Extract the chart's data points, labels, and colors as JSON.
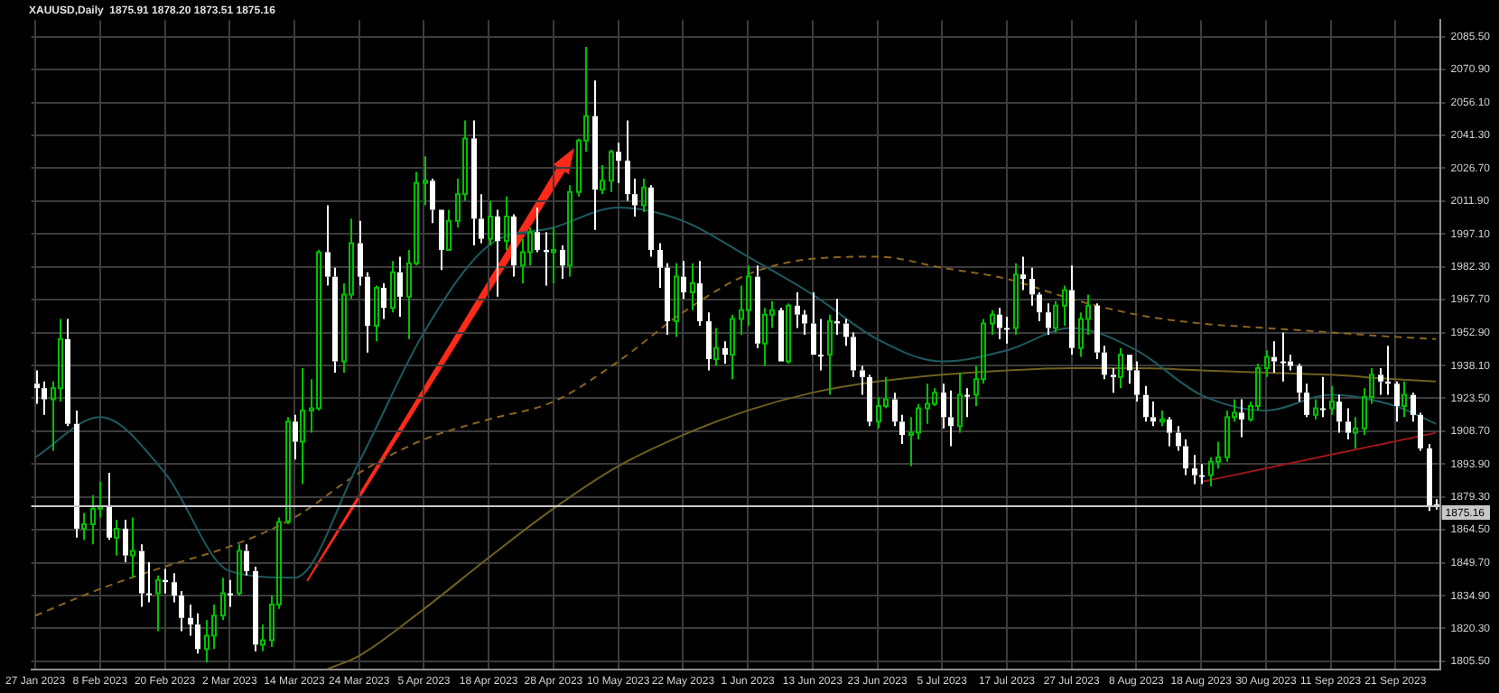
{
  "chart_data": {
    "type": "candlestick",
    "title": "XAUUSD,Daily  1875.91 1878.20 1873.51 1875.16",
    "categories": [
      "27 Jan 2023",
      null,
      null,
      null,
      null,
      null,
      null,
      null,
      "8 Feb 2023",
      null,
      null,
      null,
      null,
      null,
      null,
      null,
      "20 Feb 2023",
      null,
      null,
      null,
      null,
      null,
      null,
      null,
      "2 Mar 2023",
      null,
      null,
      null,
      null,
      null,
      null,
      null,
      "14 Mar 2023",
      null,
      null,
      null,
      null,
      null,
      null,
      null,
      "24 Mar 2023",
      null,
      null,
      null,
      null,
      null,
      null,
      null,
      "5 Apr 2023",
      null,
      null,
      null,
      null,
      null,
      null,
      null,
      "18 Apr 2023",
      null,
      null,
      null,
      null,
      null,
      null,
      null,
      "28 Apr 2023",
      null,
      null,
      null,
      null,
      null,
      null,
      null,
      "10 May 2023",
      null,
      null,
      null,
      null,
      null,
      null,
      null,
      "22 May 2023",
      null,
      null,
      null,
      null,
      null,
      null,
      null,
      "1 Jun 2023",
      null,
      null,
      null,
      null,
      null,
      null,
      null,
      "13 Jun 2023",
      null,
      null,
      null,
      null,
      null,
      null,
      null,
      "23 Jun 2023",
      null,
      null,
      null,
      null,
      null,
      null,
      null,
      "5 Jul 2023",
      null,
      null,
      null,
      null,
      null,
      null,
      null,
      "17 Jul 2023",
      null,
      null,
      null,
      null,
      null,
      null,
      null,
      "27 Jul 2023",
      null,
      null,
      null,
      null,
      null,
      null,
      null,
      "8 Aug 2023",
      null,
      null,
      null,
      null,
      null,
      null,
      null,
      "18 Aug 2023",
      null,
      null,
      null,
      null,
      null,
      null,
      null,
      "30 Aug 2023",
      null,
      null,
      null,
      null,
      null,
      null,
      null,
      "11 Sep 2023",
      null,
      null,
      null,
      null,
      null,
      null,
      null,
      "21 Sep 2023",
      null,
      null,
      null,
      null,
      null
    ],
    "ohlc": [
      [
        1930,
        1936,
        1921,
        1928
      ],
      [
        1928,
        1931,
        1916,
        1923
      ],
      [
        1923,
        1931,
        1900,
        1928
      ],
      [
        1928,
        1959,
        1922,
        1950
      ],
      [
        1950,
        1959,
        1911,
        1912
      ],
      [
        1912,
        1918,
        1861,
        1865
      ],
      [
        1865,
        1872,
        1860,
        1867
      ],
      [
        1867,
        1880,
        1858,
        1874
      ],
      [
        1874,
        1886,
        1870,
        1875
      ],
      [
        1875,
        1890,
        1860,
        1861
      ],
      [
        1861,
        1869,
        1853,
        1865
      ],
      [
        1865,
        1869,
        1850,
        1853
      ],
      [
        1853,
        1870,
        1843,
        1855
      ],
      [
        1855,
        1858,
        1830,
        1836
      ],
      [
        1836,
        1850,
        1832,
        1836
      ],
      [
        1836,
        1844,
        1819,
        1842
      ],
      [
        1842,
        1847,
        1836,
        1841
      ],
      [
        1841,
        1845,
        1832,
        1835
      ],
      [
        1835,
        1837,
        1819,
        1825
      ],
      [
        1825,
        1831,
        1817,
        1822
      ],
      [
        1822,
        1827,
        1809,
        1811
      ],
      [
        1811,
        1824,
        1805,
        1817
      ],
      [
        1817,
        1831,
        1811,
        1826
      ],
      [
        1826,
        1843,
        1824,
        1836
      ],
      [
        1836,
        1842,
        1830,
        1836
      ],
      [
        1836,
        1858,
        1835,
        1855
      ],
      [
        1855,
        1858,
        1844,
        1846
      ],
      [
        1846,
        1848,
        1810,
        1813
      ],
      [
        1813,
        1822,
        1810,
        1815
      ],
      [
        1815,
        1835,
        1812,
        1831
      ],
      [
        1831,
        1870,
        1829,
        1868
      ],
      [
        1868,
        1915,
        1867,
        1913
      ],
      [
        1913,
        1916,
        1896,
        1904
      ],
      [
        1904,
        1937,
        1885,
        1918
      ],
      [
        1918,
        1932,
        1908,
        1919
      ],
      [
        1919,
        1990,
        1918,
        1989
      ],
      [
        1989,
        2010,
        1974,
        1978
      ],
      [
        1978,
        1982,
        1935,
        1940
      ],
      [
        1940,
        1975,
        1935,
        1970
      ],
      [
        1970,
        2004,
        1968,
        1993
      ],
      [
        1993,
        2003,
        1974,
        1978
      ],
      [
        1978,
        1980,
        1944,
        1956
      ],
      [
        1956,
        1974,
        1949,
        1973
      ],
      [
        1973,
        1975,
        1959,
        1964
      ],
      [
        1964,
        1985,
        1962,
        1980
      ],
      [
        1980,
        1987,
        1960,
        1969
      ],
      [
        1969,
        1990,
        1950,
        1984
      ],
      [
        1984,
        2025,
        1983,
        2020
      ],
      [
        2020,
        2032,
        2010,
        2021
      ],
      [
        2021,
        2022,
        2002,
        2008
      ],
      [
        2008,
        2008,
        1981,
        1990
      ],
      [
        1990,
        2008,
        1990,
        2003
      ],
      [
        2003,
        2022,
        2000,
        2015
      ],
      [
        2015,
        2048,
        2012,
        2040
      ],
      [
        2040,
        2048,
        1992,
        2004
      ],
      [
        2004,
        2015,
        1993,
        1995
      ],
      [
        1995,
        2012,
        1992,
        2005
      ],
      [
        2005,
        2008,
        1969,
        1994
      ],
      [
        1994,
        2014,
        1990,
        2005
      ],
      [
        2005,
        2006,
        1978,
        1983
      ],
      [
        1983,
        1995,
        1975,
        1989
      ],
      [
        1989,
        2000,
        1983,
        1998
      ],
      [
        1998,
        2009,
        1989,
        1990
      ],
      [
        1990,
        1998,
        1974,
        1989
      ],
      [
        1989,
        2000,
        1975,
        1990
      ],
      [
        1990,
        1992,
        1977,
        1983
      ],
      [
        1983,
        2019,
        1978,
        2016
      ],
      [
        2016,
        2040,
        2014,
        2039
      ],
      [
        2039,
        2081,
        2034,
        2050
      ],
      [
        2050,
        2066,
        1999,
        2017
      ],
      [
        2017,
        2028,
        2015,
        2021
      ],
      [
        2021,
        2035,
        2016,
        2034
      ],
      [
        2034,
        2038,
        2020,
        2030
      ],
      [
        2030,
        2048,
        2012,
        2015
      ],
      [
        2015,
        2022,
        2005,
        2010
      ],
      [
        2010,
        2022,
        2007,
        2018
      ],
      [
        2018,
        2019,
        1987,
        1990
      ],
      [
        1990,
        1993,
        1973,
        1982
      ],
      [
        1982,
        1984,
        1952,
        1958
      ],
      [
        1958,
        1984,
        1951,
        1978
      ],
      [
        1978,
        1985,
        1968,
        1971
      ],
      [
        1971,
        1984,
        1963,
        1975
      ],
      [
        1975,
        1985,
        1956,
        1958
      ],
      [
        1958,
        1962,
        1936,
        1941
      ],
      [
        1941,
        1955,
        1938,
        1946
      ],
      [
        1946,
        1949,
        1939,
        1943
      ],
      [
        1943,
        1961,
        1932,
        1959
      ],
      [
        1959,
        1974,
        1952,
        1963
      ],
      [
        1963,
        1983,
        1956,
        1978
      ],
      [
        1978,
        1983,
        1946,
        1948
      ],
      [
        1948,
        1964,
        1938,
        1961
      ],
      [
        1961,
        1967,
        1955,
        1963
      ],
      [
        1963,
        1964,
        1940,
        1940
      ],
      [
        1940,
        1966,
        1939,
        1965
      ],
      [
        1965,
        1971,
        1955,
        1961
      ],
      [
        1961,
        1963,
        1952,
        1957
      ],
      [
        1957,
        1971,
        1943,
        1943
      ],
      [
        1943,
        1959,
        1936,
        1943
      ],
      [
        1943,
        1961,
        1925,
        1958
      ],
      [
        1958,
        1968,
        1952,
        1957
      ],
      [
        1957,
        1959,
        1947,
        1951
      ],
      [
        1951,
        1953,
        1933,
        1936
      ],
      [
        1936,
        1938,
        1925,
        1933
      ],
      [
        1933,
        1934,
        1911,
        1913
      ],
      [
        1913,
        1924,
        1910,
        1920
      ],
      [
        1920,
        1933,
        1919,
        1923
      ],
      [
        1923,
        1926,
        1911,
        1913
      ],
      [
        1913,
        1916,
        1903,
        1907
      ],
      [
        1907,
        1915,
        1893,
        1908
      ],
      [
        1908,
        1921,
        1905,
        1919
      ],
      [
        1919,
        1930,
        1912,
        1921
      ],
      [
        1921,
        1928,
        1920,
        1926
      ],
      [
        1926,
        1930,
        1910,
        1915
      ],
      [
        1915,
        1927,
        1902,
        1911
      ],
      [
        1911,
        1935,
        1908,
        1925
      ],
      [
        1925,
        1928,
        1915,
        1925
      ],
      [
        1925,
        1938,
        1920,
        1932
      ],
      [
        1932,
        1959,
        1930,
        1957
      ],
      [
        1957,
        1963,
        1952,
        1961
      ],
      [
        1961,
        1964,
        1950,
        1955
      ],
      [
        1955,
        1960,
        1948,
        1955
      ],
      [
        1955,
        1984,
        1952,
        1979
      ],
      [
        1979,
        1987,
        1972,
        1977
      ],
      [
        1977,
        1982,
        1965,
        1970
      ],
      [
        1970,
        1971,
        1958,
        1962
      ],
      [
        1962,
        1966,
        1952,
        1955
      ],
      [
        1955,
        1967,
        1953,
        1965
      ],
      [
        1965,
        1974,
        1956,
        1972
      ],
      [
        1972,
        1983,
        1943,
        1946
      ],
      [
        1946,
        1962,
        1942,
        1959
      ],
      [
        1959,
        1970,
        1952,
        1965
      ],
      [
        1965,
        1966,
        1941,
        1944
      ],
      [
        1944,
        1947,
        1932,
        1934
      ],
      [
        1934,
        1937,
        1926,
        1933
      ],
      [
        1933,
        1946,
        1928,
        1943
      ],
      [
        1943,
        1943,
        1930,
        1936
      ],
      [
        1936,
        1940,
        1922,
        1925
      ],
      [
        1925,
        1929,
        1913,
        1915
      ],
      [
        1915,
        1922,
        1911,
        1913
      ],
      [
        1913,
        1918,
        1911,
        1914
      ],
      [
        1914,
        1915,
        1902,
        1908
      ],
      [
        1908,
        1911,
        1900,
        1902
      ],
      [
        1902,
        1905,
        1889,
        1892
      ],
      [
        1892,
        1898,
        1885,
        1889
      ],
      [
        1889,
        1894,
        1885,
        1889
      ],
      [
        1889,
        1897,
        1884,
        1895
      ],
      [
        1895,
        1904,
        1892,
        1897
      ],
      [
        1897,
        1918,
        1895,
        1915
      ],
      [
        1915,
        1923,
        1913,
        1917
      ],
      [
        1917,
        1923,
        1906,
        1914
      ],
      [
        1914,
        1922,
        1913,
        1920
      ],
      [
        1920,
        1939,
        1918,
        1937
      ],
      [
        1937,
        1945,
        1933,
        1942
      ],
      [
        1942,
        1949,
        1935,
        1940
      ],
      [
        1940,
        1953,
        1931,
        1940
      ],
      [
        1940,
        1943,
        1936,
        1938
      ],
      [
        1938,
        1939,
        1922,
        1926
      ],
      [
        1926,
        1930,
        1915,
        1916
      ],
      [
        1916,
        1923,
        1914,
        1919
      ],
      [
        1919,
        1933,
        1915,
        1919
      ],
      [
        1919,
        1929,
        1916,
        1922
      ],
      [
        1922,
        1925,
        1908,
        1913
      ],
      [
        1913,
        1919,
        1905,
        1908
      ],
      [
        1908,
        1915,
        1901,
        1910
      ],
      [
        1910,
        1928,
        1907,
        1924
      ],
      [
        1924,
        1937,
        1921,
        1934
      ],
      [
        1934,
        1937,
        1925,
        1931
      ],
      [
        1931,
        1947,
        1925,
        1930
      ],
      [
        1930,
        1931,
        1913,
        1920
      ],
      [
        1920,
        1931,
        1915,
        1925
      ],
      [
        1925,
        1926,
        1913,
        1916
      ],
      [
        1916,
        1917,
        1900,
        1901
      ],
      [
        1901,
        1903,
        1873,
        1875
      ],
      [
        1875.91,
        1878.2,
        1873.51,
        1875.16
      ]
    ],
    "colors": [
      "#ffffff",
      "#ffffff",
      "#00c000",
      "#00c000",
      "#ffffff",
      "#ffffff",
      "#00c000",
      "#00c000",
      "#00c000",
      "#ffffff",
      "#00c000",
      "#ffffff",
      "#00c000",
      "#ffffff",
      "#ffffff",
      "#00c000",
      "#ffffff",
      "#ffffff",
      "#ffffff",
      "#ffffff",
      "#ffffff",
      "#00c000",
      "#00c000",
      "#00c000",
      "#ffffff",
      "#00c000",
      "#ffffff",
      "#ffffff",
      "#00c000",
      "#00c000",
      "#00c000",
      "#00c000",
      "#ffffff",
      "#00c000",
      "#00c000",
      "#00c000",
      "#ffffff",
      "#ffffff",
      "#00c000",
      "#00c000",
      "#ffffff",
      "#ffffff",
      "#00c000",
      "#ffffff",
      "#00c000",
      "#ffffff",
      "#00c000",
      "#00c000",
      "#00c000",
      "#ffffff",
      "#ffffff",
      "#00c000",
      "#00c000",
      "#00c000",
      "#ffffff",
      "#ffffff",
      "#00c000",
      "#ffffff",
      "#00c000",
      "#ffffff",
      "#00c000",
      "#00c000",
      "#ffffff",
      "#ffffff",
      "#00c000",
      "#ffffff",
      "#00c000",
      "#00c000",
      "#00c000",
      "#ffffff",
      "#00c000",
      "#00c000",
      "#ffffff",
      "#ffffff",
      "#ffffff",
      "#00c000",
      "#ffffff",
      "#ffffff",
      "#ffffff",
      "#00c000",
      "#ffffff",
      "#00c000",
      "#ffffff",
      "#ffffff",
      "#00c000",
      "#ffffff",
      "#00c000",
      "#00c000",
      "#00c000",
      "#ffffff",
      "#00c000",
      "#00c000",
      "#ffffff",
      "#00c000",
      "#ffffff",
      "#ffffff",
      "#ffffff",
      "#ffffff",
      "#00c000",
      "#ffffff",
      "#ffffff",
      "#ffffff",
      "#ffffff",
      "#ffffff",
      "#00c000",
      "#00c000",
      "#ffffff",
      "#ffffff",
      "#00c000",
      "#00c000",
      "#00c000",
      "#00c000",
      "#ffffff",
      "#ffffff",
      "#00c000",
      "#ffffff",
      "#00c000",
      "#00c000",
      "#00c000",
      "#ffffff",
      "#ffffff",
      "#00c000",
      "#ffffff",
      "#ffffff",
      "#ffffff",
      "#ffffff",
      "#00c000",
      "#00c000",
      "#ffffff",
      "#00c000",
      "#00c000",
      "#ffffff",
      "#ffffff",
      "#ffffff",
      "#00c000",
      "#ffffff",
      "#ffffff",
      "#ffffff",
      "#ffffff",
      "#00c000",
      "#ffffff",
      "#ffffff",
      "#ffffff",
      "#ffffff",
      "#ffffff",
      "#00c000",
      "#00c000",
      "#00c000",
      "#00c000",
      "#ffffff",
      "#00c000",
      "#00c000",
      "#00c000",
      "#ffffff",
      "#ffffff",
      "#ffffff",
      "#ffffff",
      "#ffffff",
      "#00c000",
      "#ffffff",
      "#00c000",
      "#ffffff",
      "#ffffff",
      "#00c000",
      "#00c000",
      "#00c000",
      "#ffffff",
      "#ffffff",
      "#ffffff",
      "#00c000",
      "#ffffff",
      "#ffffff",
      "#ffffff",
      "#ffffff"
    ],
    "series": [
      {
        "type": "line",
        "color": "#1e5a60",
        "line_style": "solid",
        "values": [
          1897,
          null,
          null,
          null,
          null,
          null,
          null,
          null,
          1915,
          null,
          null,
          null,
          null,
          null,
          null,
          null,
          1890,
          null,
          null,
          null,
          null,
          null,
          null,
          null,
          1846,
          null,
          null,
          null,
          null,
          null,
          null,
          null,
          1843,
          null,
          null,
          null,
          null,
          null,
          null,
          null,
          1895,
          null,
          null,
          null,
          null,
          null,
          null,
          null,
          1953,
          null,
          null,
          null,
          null,
          null,
          null,
          null,
          1992,
          null,
          null,
          null,
          null,
          null,
          null,
          null,
          2000,
          null,
          null,
          null,
          null,
          null,
          null,
          null,
          2009,
          null,
          null,
          null,
          null,
          null,
          null,
          null,
          2003,
          null,
          null,
          null,
          null,
          null,
          null,
          null,
          1987,
          null,
          null,
          null,
          null,
          null,
          null,
          null,
          1970,
          null,
          null,
          null,
          null,
          null,
          null,
          null,
          1950,
          null,
          null,
          null,
          null,
          null,
          null,
          null,
          1940,
          null,
          null,
          null,
          null,
          null,
          null,
          null,
          1945,
          null,
          null,
          null,
          null,
          null,
          null,
          null,
          1955,
          null,
          null,
          null,
          null,
          null,
          null,
          null,
          1945,
          null,
          null,
          null,
          null,
          null,
          null,
          null,
          1925,
          null,
          null,
          null,
          null,
          null,
          null,
          null,
          1918,
          null,
          null,
          null,
          null,
          null,
          null,
          null,
          1925,
          null,
          null,
          null,
          null,
          null,
          null,
          null,
          1920,
          null,
          null,
          null,
          null,
          1912
        ]
      },
      {
        "type": "line",
        "color": "#8a6420",
        "line_style": "dashed",
        "values": [
          1826,
          null,
          null,
          null,
          null,
          null,
          null,
          null,
          1838,
          null,
          null,
          null,
          null,
          null,
          null,
          null,
          1848,
          null,
          null,
          null,
          null,
          null,
          null,
          null,
          1857,
          null,
          null,
          null,
          null,
          null,
          null,
          null,
          1870,
          null,
          null,
          null,
          null,
          null,
          null,
          null,
          1890,
          null,
          null,
          null,
          null,
          null,
          null,
          null,
          1905,
          null,
          null,
          null,
          null,
          null,
          null,
          null,
          1914,
          null,
          null,
          null,
          null,
          null,
          null,
          null,
          1922,
          null,
          null,
          null,
          null,
          null,
          null,
          null,
          1940,
          null,
          null,
          null,
          null,
          null,
          null,
          null,
          1962,
          null,
          null,
          null,
          null,
          null,
          null,
          null,
          1979,
          null,
          null,
          null,
          null,
          null,
          null,
          null,
          1986,
          null,
          null,
          null,
          null,
          null,
          null,
          null,
          1987,
          null,
          null,
          null,
          null,
          null,
          null,
          null,
          1982,
          null,
          null,
          null,
          null,
          null,
          null,
          null,
          1977,
          null,
          null,
          null,
          null,
          null,
          null,
          null,
          1968,
          null,
          null,
          null,
          null,
          null,
          null,
          null,
          1961,
          null,
          null,
          null,
          null,
          null,
          null,
          null,
          1957,
          null,
          null,
          null,
          null,
          null,
          null,
          null,
          1955,
          null,
          null,
          null,
          null,
          null,
          null,
          null,
          1953,
          null,
          null,
          null,
          null,
          null,
          null,
          null,
          1951,
          null,
          null,
          null,
          null,
          1950
        ]
      },
      {
        "type": "line",
        "color": "#6e6020",
        "line_style": "solid",
        "values": [
          null,
          null,
          null,
          null,
          null,
          null,
          null,
          null,
          null,
          null,
          null,
          null,
          null,
          null,
          null,
          null,
          null,
          null,
          null,
          null,
          null,
          null,
          null,
          null,
          null,
          null,
          null,
          null,
          null,
          null,
          null,
          null,
          null,
          null,
          null,
          null,
          1802,
          null,
          null,
          null,
          1808,
          null,
          null,
          null,
          null,
          null,
          null,
          null,
          1829,
          null,
          null,
          null,
          null,
          null,
          null,
          null,
          1852,
          null,
          null,
          null,
          null,
          null,
          null,
          null,
          1874,
          null,
          null,
          null,
          null,
          null,
          null,
          null,
          1893,
          null,
          null,
          null,
          null,
          null,
          null,
          null,
          1907,
          null,
          null,
          null,
          null,
          null,
          null,
          null,
          1918,
          null,
          null,
          null,
          null,
          null,
          null,
          null,
          1926,
          null,
          null,
          null,
          null,
          null,
          null,
          null,
          1931,
          null,
          null,
          null,
          null,
          null,
          null,
          null,
          1934,
          null,
          null,
          null,
          null,
          null,
          null,
          null,
          1936,
          null,
          null,
          null,
          null,
          null,
          null,
          null,
          1937,
          null,
          null,
          null,
          null,
          null,
          null,
          null,
          1937,
          null,
          null,
          null,
          null,
          null,
          null,
          null,
          1936,
          null,
          null,
          null,
          null,
          null,
          null,
          null,
          1935,
          null,
          null,
          null,
          null,
          null,
          null,
          null,
          1934,
          null,
          null,
          null,
          null,
          null,
          null,
          null,
          1932,
          null,
          null,
          null,
          null,
          1931
        ]
      },
      {
        "type": "line",
        "color": "#a01818",
        "line_style": "solid",
        "values": [
          null,
          null,
          null,
          null,
          null,
          null,
          null,
          null,
          null,
          null,
          null,
          null,
          null,
          null,
          null,
          null,
          null,
          null,
          null,
          null,
          null,
          null,
          null,
          null,
          null,
          null,
          null,
          null,
          null,
          null,
          null,
          null,
          null,
          null,
          null,
          null,
          null,
          null,
          null,
          null,
          null,
          null,
          null,
          null,
          null,
          null,
          null,
          null,
          null,
          null,
          null,
          null,
          null,
          null,
          null,
          null,
          null,
          null,
          null,
          null,
          null,
          null,
          null,
          null,
          null,
          null,
          null,
          null,
          null,
          null,
          null,
          null,
          null,
          null,
          null,
          null,
          null,
          null,
          null,
          null,
          null,
          null,
          null,
          null,
          null,
          null,
          null,
          null,
          null,
          null,
          null,
          null,
          null,
          null,
          null,
          null,
          null,
          null,
          null,
          null,
          null,
          null,
          null,
          null,
          null,
          null,
          null,
          null,
          null,
          null,
          null,
          null,
          null,
          null,
          null,
          null,
          null,
          null,
          null,
          null,
          null,
          null,
          null,
          null,
          null,
          null,
          null,
          null,
          null,
          null,
          null,
          null,
          null,
          null,
          null,
          null,
          null,
          null,
          null,
          null,
          null,
          null,
          null,
          null,
          1886,
          null,
          null,
          null,
          null,
          null,
          null,
          null,
          null,
          null,
          null,
          null,
          null,
          null,
          null,
          null,
          null,
          null,
          null,
          null,
          null,
          null,
          null,
          null,
          null,
          null,
          null,
          null,
          null,
          1908
        ]
      }
    ],
    "ylim": [
      1802,
      2093
    ],
    "yticks": [
      {
        "value": 2085.5,
        "label": "2085.50"
      },
      {
        "value": 2070.9,
        "label": "2070.90"
      },
      {
        "value": 2056.1,
        "label": "2056.10"
      },
      {
        "value": 2041.3,
        "label": "2041.30"
      },
      {
        "value": 2026.7,
        "label": "2026.70"
      },
      {
        "value": 2011.9,
        "label": "2011.90"
      },
      {
        "value": 1997.1,
        "label": "1997.10"
      },
      {
        "value": 1982.3,
        "label": "1982.30"
      },
      {
        "value": 1967.7,
        "label": "1967.70"
      },
      {
        "value": 1952.9,
        "label": "1952.90"
      },
      {
        "value": 1938.1,
        "label": "1938.10"
      },
      {
        "value": 1923.5,
        "label": "1923.50"
      },
      {
        "value": 1908.7,
        "label": "1908.70"
      },
      {
        "value": 1893.9,
        "label": "1893.90"
      },
      {
        "value": 1879.3,
        "label": "1879.30"
      },
      {
        "value": 1864.5,
        "label": "1864.50"
      },
      {
        "value": 1849.7,
        "label": "1849.70"
      },
      {
        "value": 1834.9,
        "label": "1834.90"
      },
      {
        "value": 1820.3,
        "label": "1820.30"
      },
      {
        "value": 1805.5,
        "label": "1805.50"
      }
    ],
    "ref_lines": [
      {
        "axis": "y",
        "value": 1875.16,
        "label": "1875.16",
        "color": "#c8c8c8"
      }
    ],
    "grid": true,
    "legend": false,
    "marker": "none"
  }
}
